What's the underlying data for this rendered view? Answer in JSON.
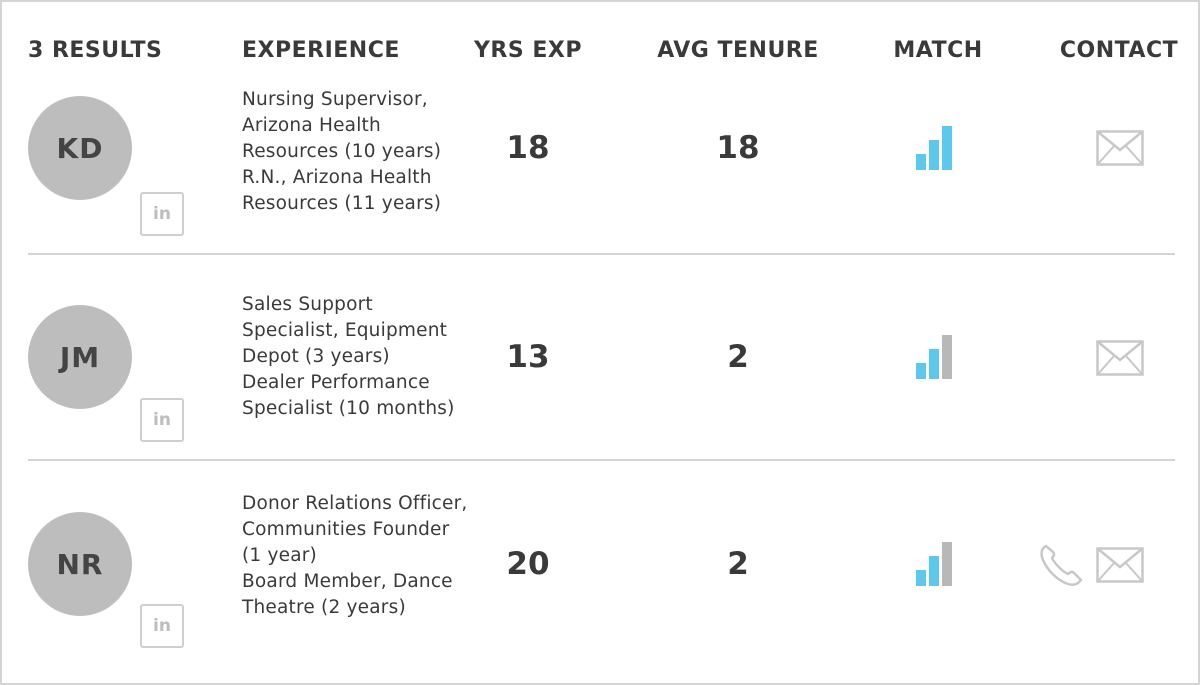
{
  "header": {
    "results_label": "3 RESULTS",
    "experience_label": "EXPERIENCE",
    "yrs_exp_label": "YRS EXP",
    "avg_tenure_label": "AVG TENURE",
    "match_label": "MATCH",
    "contact_label": "CONTACT"
  },
  "colors": {
    "match_active": "#5bc8ec",
    "match_inactive": "#b8b8b8",
    "avatar": "#bdbdbd",
    "divider": "#d4d4d4",
    "icon": "#c8c8c8"
  },
  "rows": [
    {
      "initials": "KD",
      "linkedin_label": "in",
      "experience": [
        "Nursing Supervisor,",
        "Arizona Health",
        "Resources (10 years)",
        "R.N., Arizona Health",
        "Resources (11 years)"
      ],
      "yrs_exp": "18",
      "avg_tenure": "18",
      "match_level": 3,
      "contact": [
        "email-icon"
      ]
    },
    {
      "initials": "JM",
      "linkedin_label": "in",
      "experience": [
        "Sales Support",
        "Specialist, Equipment",
        "Depot (3 years)",
        "Dealer Performance",
        "Specialist (10 months)"
      ],
      "yrs_exp": "13",
      "avg_tenure": "2",
      "match_level": 2,
      "contact": [
        "email-icon"
      ]
    },
    {
      "initials": "NR",
      "linkedin_label": "in",
      "experience": [
        "Donor Relations Officer,",
        "Communities Founder",
        "(1 year)",
        "Board Member, Dance",
        "Theatre (2 years)"
      ],
      "yrs_exp": "20",
      "avg_tenure": "2",
      "match_level": 2,
      "contact": [
        "phone-icon",
        "email-icon"
      ]
    }
  ]
}
